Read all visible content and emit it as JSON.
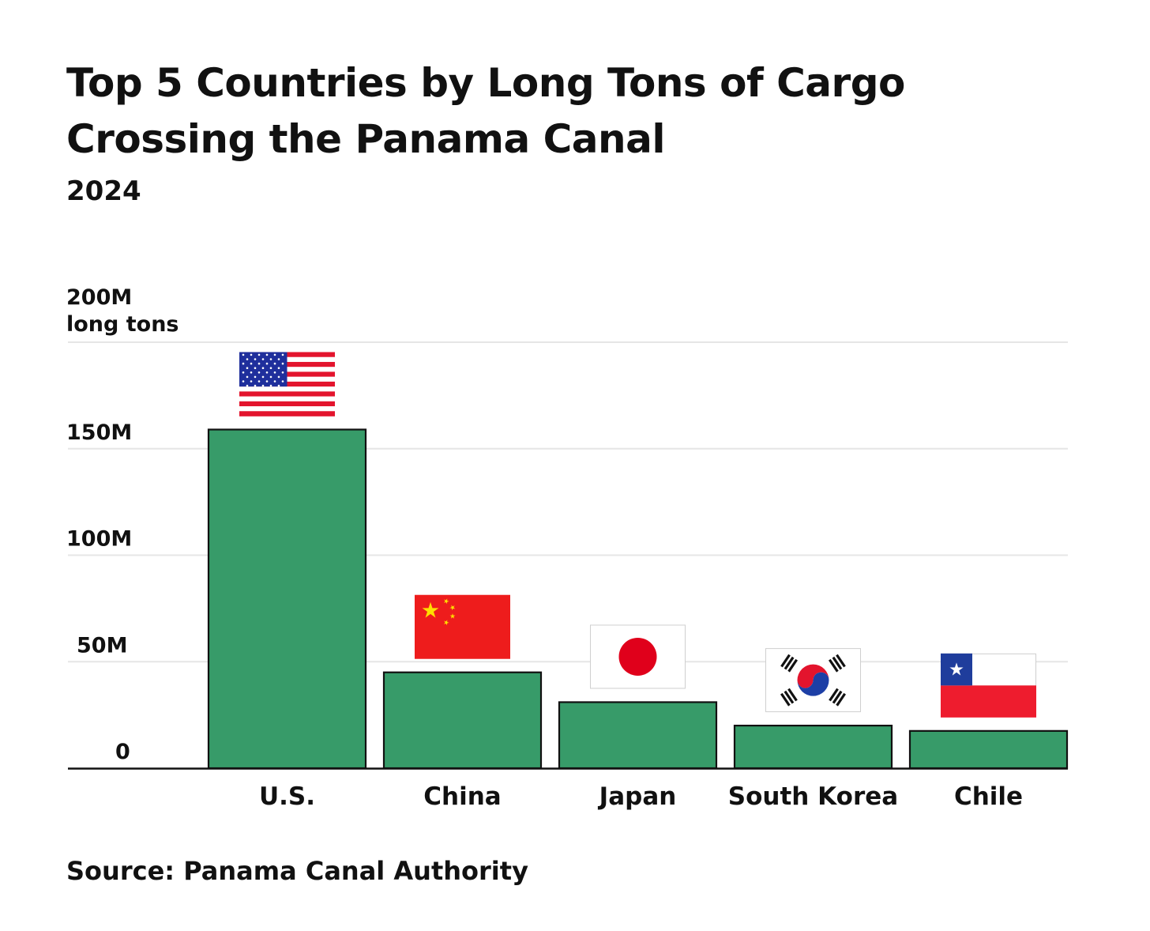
{
  "title": "Top 5 Countries by Long Tons of Cargo Crossing the Panama Canal",
  "subtitle": "2024",
  "source": "Source: Panama Canal Authority",
  "colors": {
    "bar": "#379b69",
    "bar_outline": "#111111",
    "grid": "#e6e6e6",
    "axis": "#111111"
  },
  "chart_data": {
    "type": "bar",
    "categories": [
      "U.S.",
      "China",
      "Japan",
      "South Korea",
      "Chile"
    ],
    "values": [
      159,
      45,
      31,
      20,
      17.5
    ],
    "unit": "long tons",
    "ylim": [
      0,
      200
    ],
    "yticks": [
      {
        "value": 0,
        "label": "0"
      },
      {
        "value": 50,
        "label": "50M"
      },
      {
        "value": 100,
        "label": "100M"
      },
      {
        "value": 150,
        "label": "150M"
      },
      {
        "value": 200,
        "label": "200M"
      }
    ],
    "grid": true,
    "flags": [
      "us-flag-icon",
      "china-flag-icon",
      "japan-flag-icon",
      "south-korea-flag-icon",
      "chile-flag-icon"
    ]
  }
}
